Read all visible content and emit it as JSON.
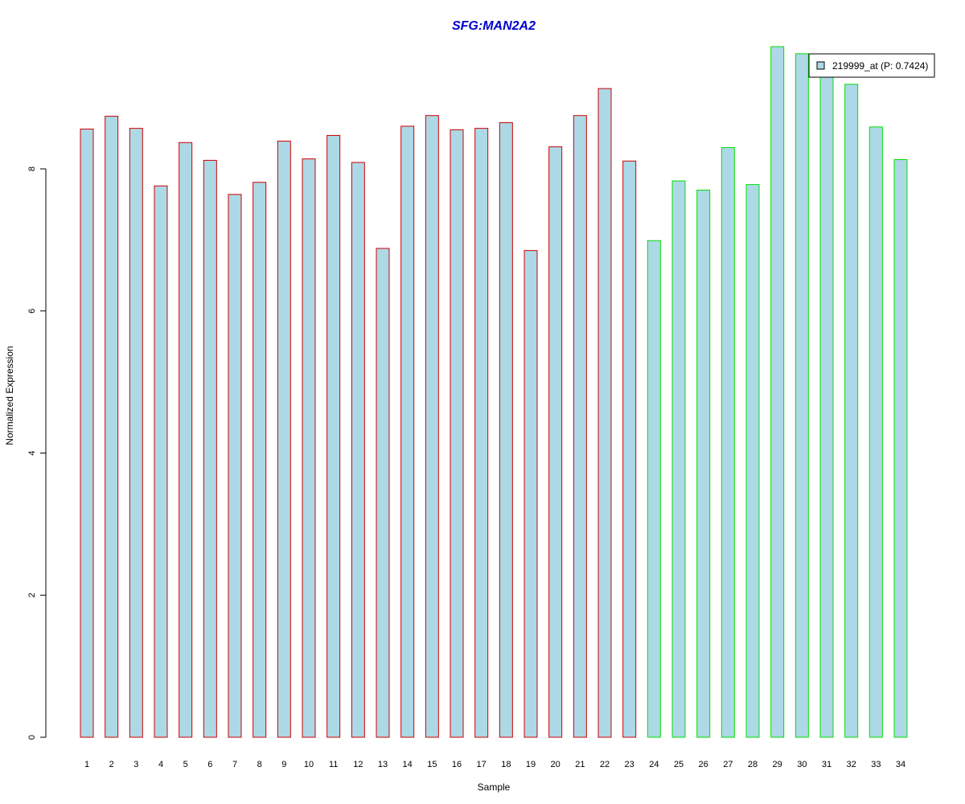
{
  "chart_data": {
    "type": "bar",
    "title": "SFG:MAN2A2",
    "xlabel": "Sample",
    "ylabel": "Normalized Expression",
    "ylim": [
      0,
      9.7
    ],
    "yticks": [
      0,
      2,
      4,
      6,
      8
    ],
    "grid": false,
    "legend_position": "top-right",
    "categories": [
      "1",
      "2",
      "3",
      "4",
      "5",
      "6",
      "7",
      "8",
      "9",
      "10",
      "11",
      "12",
      "13",
      "14",
      "15",
      "16",
      "17",
      "18",
      "19",
      "20",
      "21",
      "22",
      "23",
      "24",
      "25",
      "26",
      "27",
      "28",
      "29",
      "30",
      "31",
      "32",
      "33",
      "34"
    ],
    "series": [
      {
        "name": "219999_at (P: 0.7424)",
        "values": [
          8.56,
          8.74,
          8.57,
          7.76,
          8.37,
          8.12,
          7.64,
          7.81,
          8.39,
          8.14,
          8.47,
          8.09,
          6.88,
          8.6,
          8.75,
          8.55,
          8.57,
          8.65,
          6.85,
          8.31,
          8.75,
          9.13,
          8.11,
          6.99,
          7.83,
          7.7,
          8.3,
          7.78,
          9.72,
          9.62,
          9.45,
          9.19,
          8.59,
          8.13
        ],
        "fill_color": "#add8e6",
        "group_border_colors": [
          "#d00000",
          "#d00000",
          "#d00000",
          "#d00000",
          "#d00000",
          "#d00000",
          "#d00000",
          "#d00000",
          "#d00000",
          "#d00000",
          "#d00000",
          "#d00000",
          "#d00000",
          "#d00000",
          "#d00000",
          "#d00000",
          "#d00000",
          "#d00000",
          "#d00000",
          "#d00000",
          "#d00000",
          "#d00000",
          "#d00000",
          "#00e000",
          "#00e000",
          "#00e000",
          "#00e000",
          "#00e000",
          "#00e000",
          "#00e000",
          "#00e000",
          "#00e000",
          "#00e000",
          "#00e000"
        ]
      }
    ],
    "colors": {
      "title": "#0000cc",
      "bar_fill": "#add8e6",
      "axis": "#000000"
    }
  }
}
